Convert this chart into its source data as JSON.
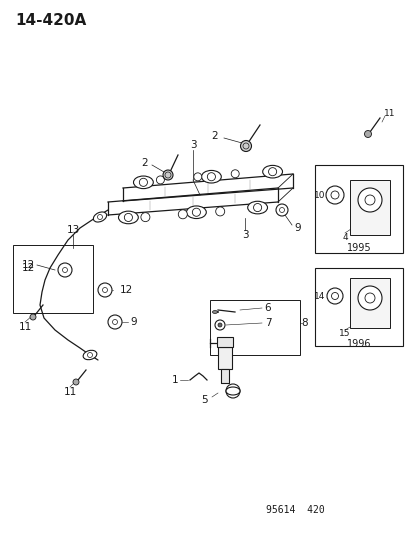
{
  "title": "14-420A",
  "footer": "95614  420",
  "bg_color": "#ffffff",
  "fg_color": "#1a1a1a",
  "title_fontsize": 11,
  "label_fontsize": 7.5,
  "footer_fontsize": 7,
  "fig_width": 4.14,
  "fig_height": 5.33,
  "dpi": 100,
  "box1_label": "1995",
  "box2_label": "1996"
}
